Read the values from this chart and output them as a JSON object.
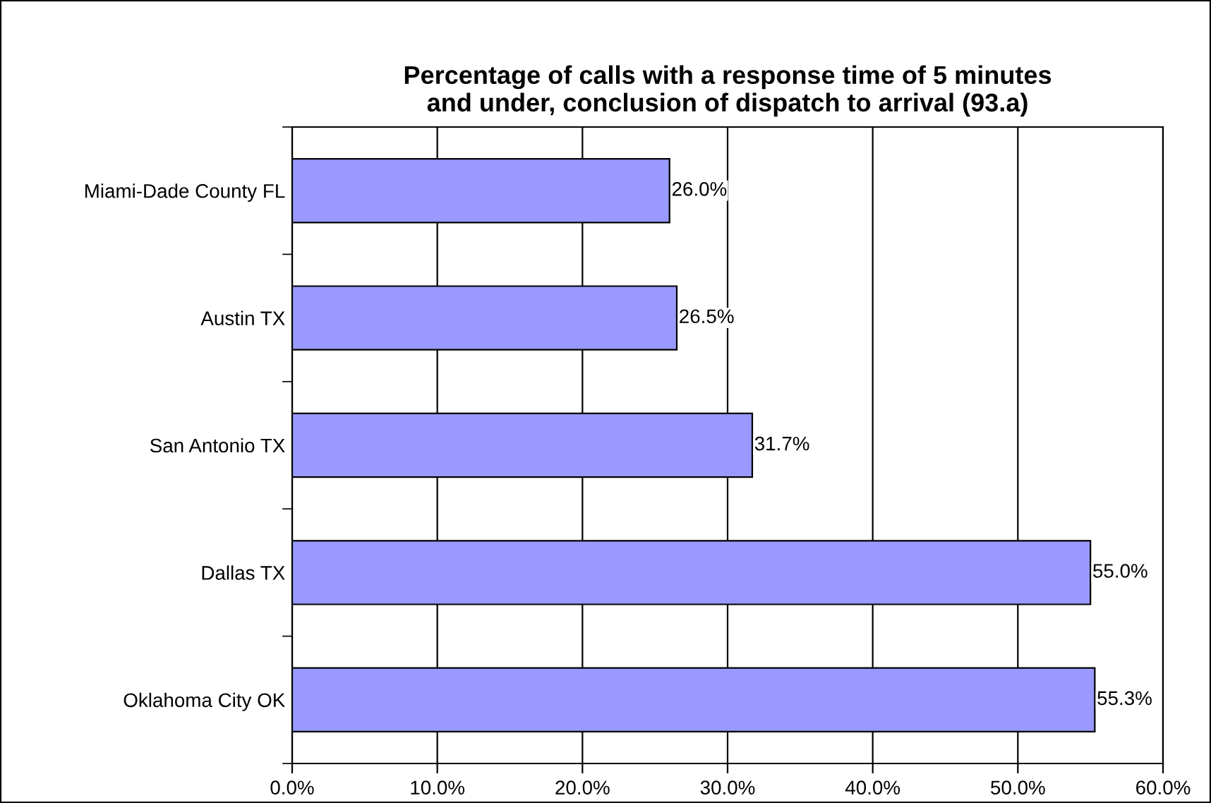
{
  "chart_data": {
    "type": "bar",
    "orientation": "horizontal",
    "title": "Percentage of calls with a response time of 5 minutes\nand under, conclusion of dispatch to arrival (93.a)",
    "categories": [
      "Miami-Dade County FL",
      "Austin TX",
      "San Antonio TX",
      "Dallas TX",
      "Oklahoma City OK"
    ],
    "values": [
      26.0,
      26.5,
      31.7,
      55.0,
      55.3
    ],
    "value_labels": [
      "26.0%",
      "26.5%",
      "31.7%",
      "55.0%",
      "55.3%"
    ],
    "color": "#9999ff",
    "xlim": [
      0,
      60
    ],
    "xticks": [
      {
        "value": 0,
        "label": "0.0%"
      },
      {
        "value": 10,
        "label": "10.0%"
      },
      {
        "value": 20,
        "label": "20.0%"
      },
      {
        "value": 30,
        "label": "30.0%"
      },
      {
        "value": 40,
        "label": "40.0%"
      },
      {
        "value": 50,
        "label": "50.0%"
      },
      {
        "value": 60,
        "label": "60.0%"
      }
    ],
    "grid": "x",
    "legend": false
  }
}
